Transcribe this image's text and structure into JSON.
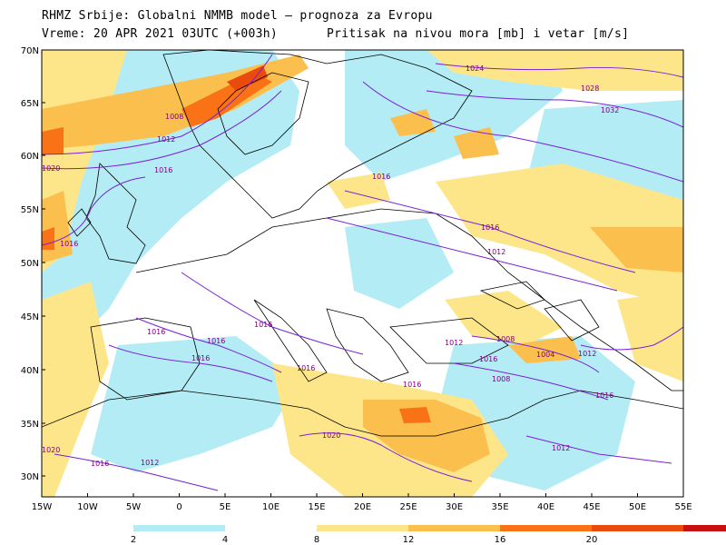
{
  "header": {
    "line1": "RHMZ Srbije: Globalni NMMB model — prognoza za Evropu",
    "line2": "Vreme: 20 APR 2021 03UTC (+003h)",
    "line3": "Pritisak na nivou mora [mb] i vetar [m/s]"
  },
  "axes": {
    "lat_labels": [
      "70N",
      "65N",
      "60N",
      "55N",
      "50N",
      "45N",
      "40N",
      "35N",
      "30N"
    ],
    "lon_labels": [
      "15W",
      "10W",
      "5W",
      "0",
      "5E",
      "10E",
      "15E",
      "20E",
      "25E",
      "30E",
      "35E",
      "40E",
      "45E",
      "50E",
      "55E"
    ]
  },
  "isobars": {
    "labels": [
      "1024",
      "1028",
      "1032",
      "1008",
      "1012",
      "1016",
      "1016",
      "1016",
      "1016",
      "1012",
      "1008",
      "1004",
      "1012",
      "1008",
      "1012",
      "1016",
      "1016",
      "1016",
      "1016",
      "1016",
      "1016",
      "1016",
      "1020",
      "1012",
      "1016",
      "1012",
      "1020",
      "1020",
      "1016"
    ]
  },
  "colorbar": {
    "labels": [
      "2",
      "4",
      "8",
      "12",
      "16",
      "20"
    ],
    "colors": [
      "#b3ecf5",
      "#ffffff",
      "#fde68a",
      "#fbbf4e",
      "#f97316",
      "#ea4b0c",
      "#c81010"
    ]
  }
}
